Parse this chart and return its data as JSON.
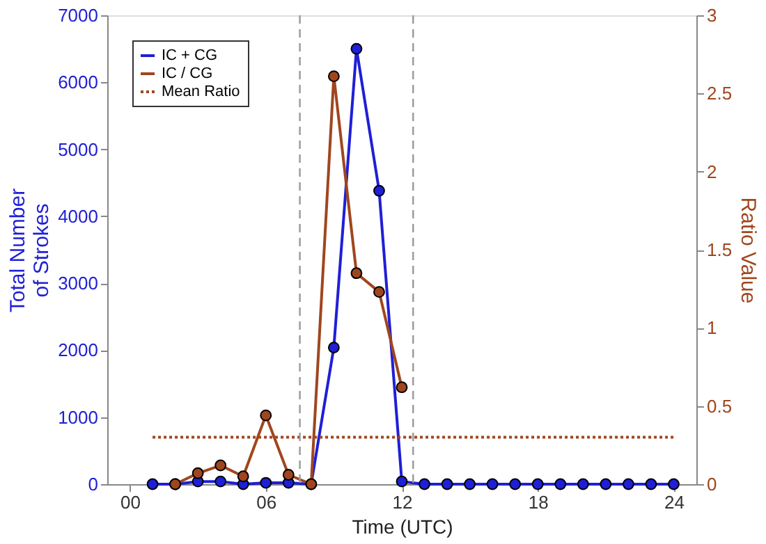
{
  "chart_data": {
    "type": "line",
    "xlabel": "Time (UTC)",
    "ylabel": "Total Number\nof Strokes",
    "y2label": "Ratio Value",
    "xlim": [
      -1,
      25
    ],
    "xticks": [
      {
        "value": 0,
        "label": "00"
      },
      {
        "value": 6,
        "label": "06"
      },
      12,
      18,
      24
    ],
    "ylim": [
      0,
      7000
    ],
    "yticks": [
      0,
      1000,
      2000,
      3000,
      4000,
      5000,
      6000,
      7000
    ],
    "y2lim": [
      0,
      3
    ],
    "y2ticks": [
      0,
      0.5,
      1,
      1.5,
      2,
      2.5,
      3
    ],
    "series": [
      {
        "name": "IC + CG",
        "color": "#1f1fd6",
        "marker": "circle",
        "x": [
          1,
          2,
          3,
          4,
          5,
          6,
          7,
          8,
          9,
          10,
          11,
          12,
          13,
          14,
          15,
          16,
          17,
          18,
          19,
          20,
          21,
          22,
          23,
          24
        ],
        "values": [
          0,
          0,
          40,
          40,
          0,
          20,
          20,
          0,
          2040,
          6500,
          4380,
          40,
          0,
          0,
          0,
          0,
          0,
          0,
          0,
          0,
          0,
          0,
          0,
          0
        ]
      },
      {
        "name": "IC / CG",
        "color": "#a0461e",
        "marker": "circle",
        "axis": "y2",
        "x": [
          2,
          3,
          4,
          5,
          6,
          7,
          8,
          9,
          10,
          11,
          12
        ],
        "values": [
          0,
          0.07,
          0.12,
          0.05,
          0.44,
          0.06,
          0,
          2.61,
          1.35,
          1.23,
          0.62
        ]
      },
      {
        "name": "Mean Ratio",
        "color": "#a0461e",
        "marker": "none",
        "line_style": "dotted",
        "axis": "y2",
        "x": [
          1,
          24
        ],
        "values": [
          0.3,
          0.3
        ]
      }
    ],
    "ref_lines": [
      {
        "axis": "x",
        "value": 7.5,
        "color": "#999999",
        "line_style": "dashed"
      },
      {
        "axis": "x",
        "value": 12.5,
        "color": "#999999",
        "line_style": "dashed"
      }
    ],
    "legend": "top left",
    "grid": false
  }
}
